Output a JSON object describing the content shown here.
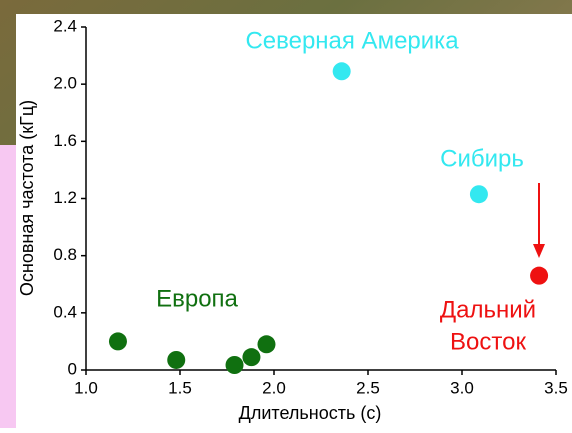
{
  "chart_data": {
    "type": "scatter",
    "x_label": "Длительность (с)",
    "y_label": "Основная частота (кГц)",
    "xlim": [
      1.0,
      3.5
    ],
    "xticks": [
      {
        "value": 1.0,
        "label": "1.0"
      },
      {
        "value": 1.5,
        "label": "1.5"
      },
      {
        "value": 2.0,
        "label": "2.0"
      },
      {
        "value": 2.5,
        "label": "2.5"
      },
      {
        "value": 3.0,
        "label": "3.0"
      },
      {
        "value": 3.5,
        "label": "3.5"
      }
    ],
    "ylim": [
      0,
      2.4
    ],
    "yticks": [
      0,
      0.4,
      0.8,
      1.2,
      1.6,
      {
        "value": 2.0,
        "label": "2.0"
      },
      2.4
    ],
    "series": [
      {
        "label_lines": [
          "Европа"
        ],
        "color": "#107010",
        "x": [
          1.17,
          1.48,
          1.79,
          1.88,
          1.96
        ],
        "values": [
          0.2,
          0.07,
          0.035,
          0.09,
          0.18
        ]
      },
      {
        "label_lines": [
          "Северная Америка"
        ],
        "color": "#33e8f0",
        "x": [
          2.36
        ],
        "values": [
          2.09
        ]
      },
      {
        "label_lines": [
          "Сибирь"
        ],
        "color": "#33e8f0",
        "x": [
          3.09
        ],
        "values": [
          1.23
        ]
      },
      {
        "label_lines": [
          "Дальний",
          "Восток"
        ],
        "color": "#ee1111",
        "x": [
          3.41
        ],
        "values": [
          0.66
        ]
      }
    ]
  }
}
